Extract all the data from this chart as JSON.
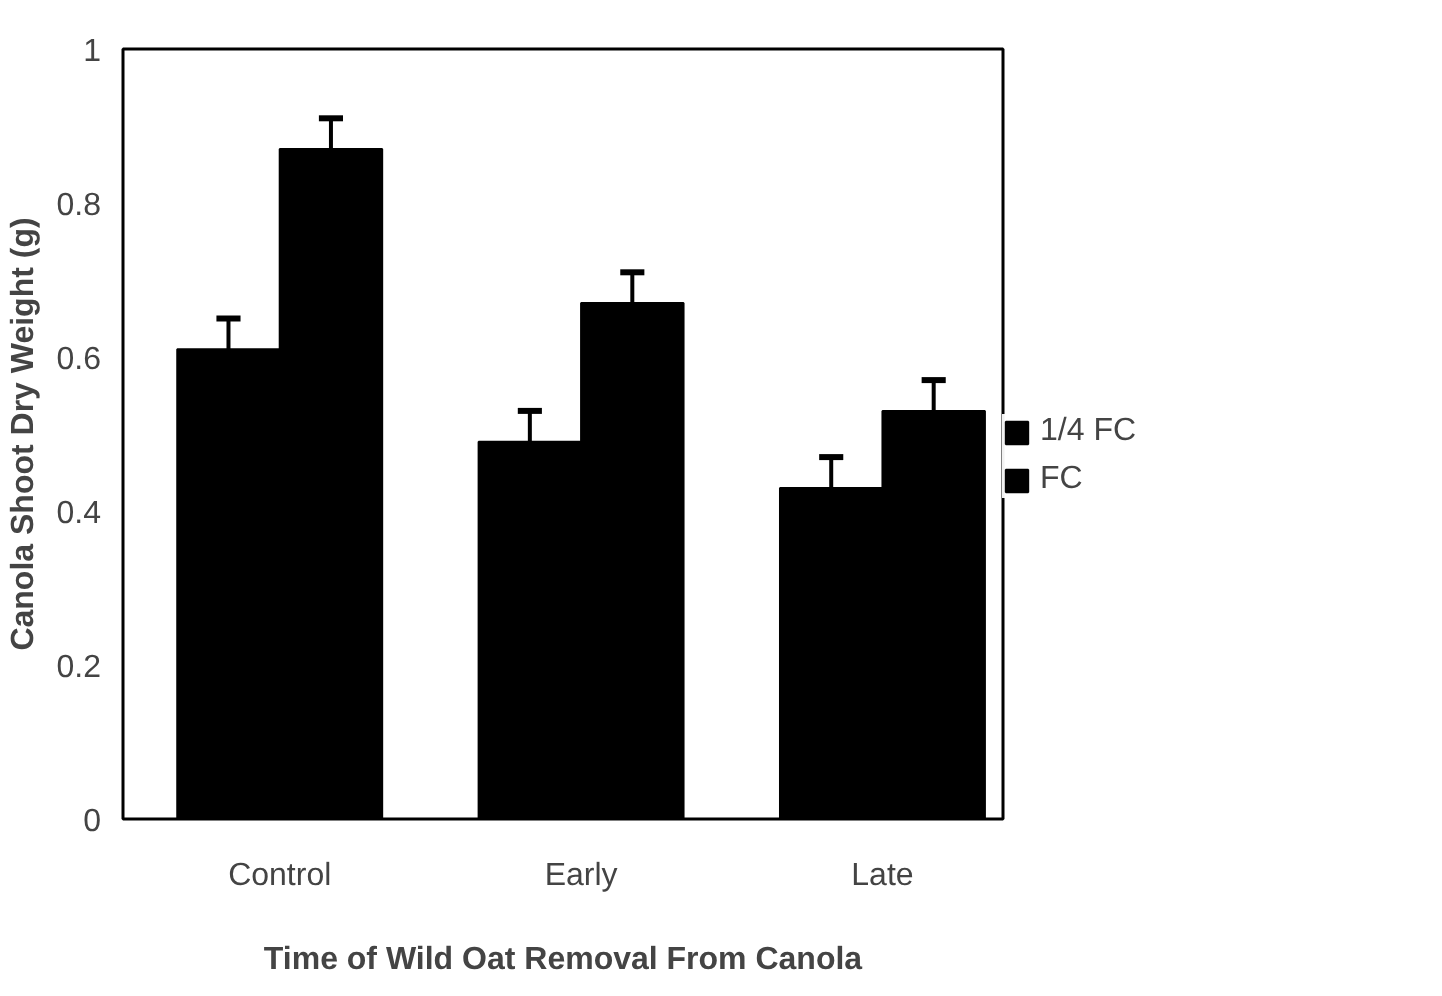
{
  "chart_data": {
    "type": "bar",
    "xlabel": "Time of Wild Oat Removal From Canola",
    "ylabel": "Canola Shoot Dry Weight (g)",
    "categories": [
      "Control",
      "Early",
      "Late"
    ],
    "series": [
      {
        "name": "1/4 FC",
        "color": "#000000",
        "values": [
          0.61,
          0.49,
          0.43
        ],
        "errors": [
          0.04,
          0.04,
          0.04
        ]
      },
      {
        "name": "FC",
        "color": "#000000",
        "values": [
          0.87,
          0.67,
          0.53
        ],
        "errors": [
          0.04,
          0.04,
          0.04
        ]
      }
    ],
    "ylim": [
      0,
      1
    ],
    "yticks": [
      0,
      0.2,
      0.4,
      0.6,
      0.8,
      1
    ],
    "grid": false,
    "legend": "right"
  }
}
